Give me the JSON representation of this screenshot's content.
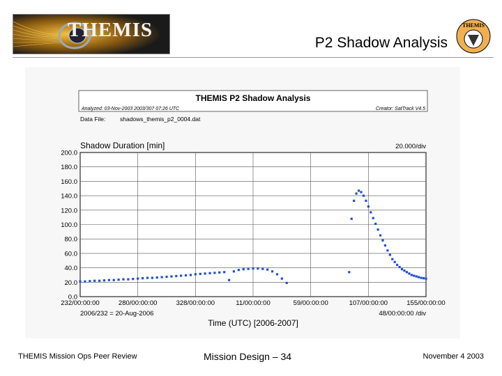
{
  "slide": {
    "logo_text": "THEMIS",
    "title": "P2 Shadow Analysis",
    "badge_text": "THEMIS",
    "footer_left": "THEMIS Mission Ops Peer Review",
    "footer_center": "Mission Design – 34",
    "footer_right": "November 4 2003"
  },
  "plot_header": {
    "title": "THEMIS P2 Shadow Analysis",
    "analyzed": "Analyzed: 03-Nov-2003 2003/307 07:26 UTC",
    "creator": "Creator: SatTrack V4.5",
    "data_file_label": "Data File:",
    "data_file": "shadows_themis_p2_0004.dat"
  },
  "chart_data": {
    "type": "scatter",
    "title": "THEMIS P2 Shadow Analysis",
    "ylabel": "Shadow Duration [min]",
    "yscale_note": "20.000/div",
    "xlabel": "Time (UTC) [2006-2007]",
    "xscale_note": "48/00:00:00 /div",
    "x_epoch_note": "2006/232 = 20-Aug-2006",
    "ylim": [
      0,
      200
    ],
    "yticks": [
      "0.0",
      "20.0",
      "40.0",
      "60.0",
      "80.0",
      "100.0",
      "120.0",
      "140.0",
      "160.0",
      "180.0",
      "200.0"
    ],
    "xticks": [
      "232/00:00:00",
      "280/00:00:00",
      "328/00:00:00",
      "11/00:00:00",
      "59/00:00:00",
      "107/00:00:00",
      "155/00:00:00"
    ],
    "x_units": "days after 2006/232",
    "x_range": [
      0,
      288
    ],
    "grid": true,
    "series": [
      {
        "name": "",
        "x": [
          0,
          4,
          8,
          12,
          16,
          20,
          24,
          28,
          32,
          36,
          40,
          44,
          48,
          52,
          56,
          60,
          64,
          68,
          72,
          76,
          80,
          84,
          88,
          92,
          96,
          100,
          104,
          108,
          112,
          116,
          120,
          124,
          128,
          132,
          136,
          140,
          144,
          148,
          152,
          156,
          160,
          164,
          168,
          172,
          176,
          180,
          184,
          188,
          192,
          196,
          200,
          204,
          208,
          212,
          216,
          220,
          224,
          228,
          232,
          236,
          240,
          244,
          248,
          252,
          256,
          260,
          264,
          268,
          272,
          276,
          280,
          284,
          288
        ],
        "y": [
          21,
          21,
          21.5,
          22,
          22,
          22.5,
          23,
          23,
          23.5,
          24,
          24,
          24.5,
          25,
          25.5,
          26,
          26,
          26.5,
          27,
          27.5,
          28,
          28.5,
          29,
          29.5,
          30,
          31,
          31.5,
          32,
          32.5,
          33,
          33.5,
          34,
          23,
          35,
          37,
          38,
          38.5,
          39,
          39,
          38.5,
          37.5,
          35,
          31,
          25,
          19,
          null,
          null,
          null,
          null,
          null,
          null,
          null,
          null,
          null,
          null,
          null,
          null,
          null,
          null,
          null,
          null,
          null,
          null,
          null,
          null,
          null,
          null,
          null,
          null,
          null,
          null,
          null,
          null,
          null
        ]
      },
      {
        "name": "",
        "x": [
          224,
          226,
          228,
          230,
          232,
          234,
          236,
          238,
          240,
          242,
          244,
          246,
          248,
          250,
          252,
          254,
          256,
          258,
          260,
          262,
          264,
          266,
          268,
          270,
          272,
          274,
          276,
          278,
          280,
          282,
          284,
          286,
          288
        ],
        "y": [
          34,
          108,
          133,
          143,
          147,
          145,
          140,
          133,
          125,
          117,
          109,
          101,
          93,
          85,
          78,
          71,
          64,
          58,
          52,
          48,
          44,
          41,
          38,
          36,
          34,
          32,
          30,
          29,
          28,
          27,
          26,
          25.5,
          25
        ]
      }
    ]
  }
}
